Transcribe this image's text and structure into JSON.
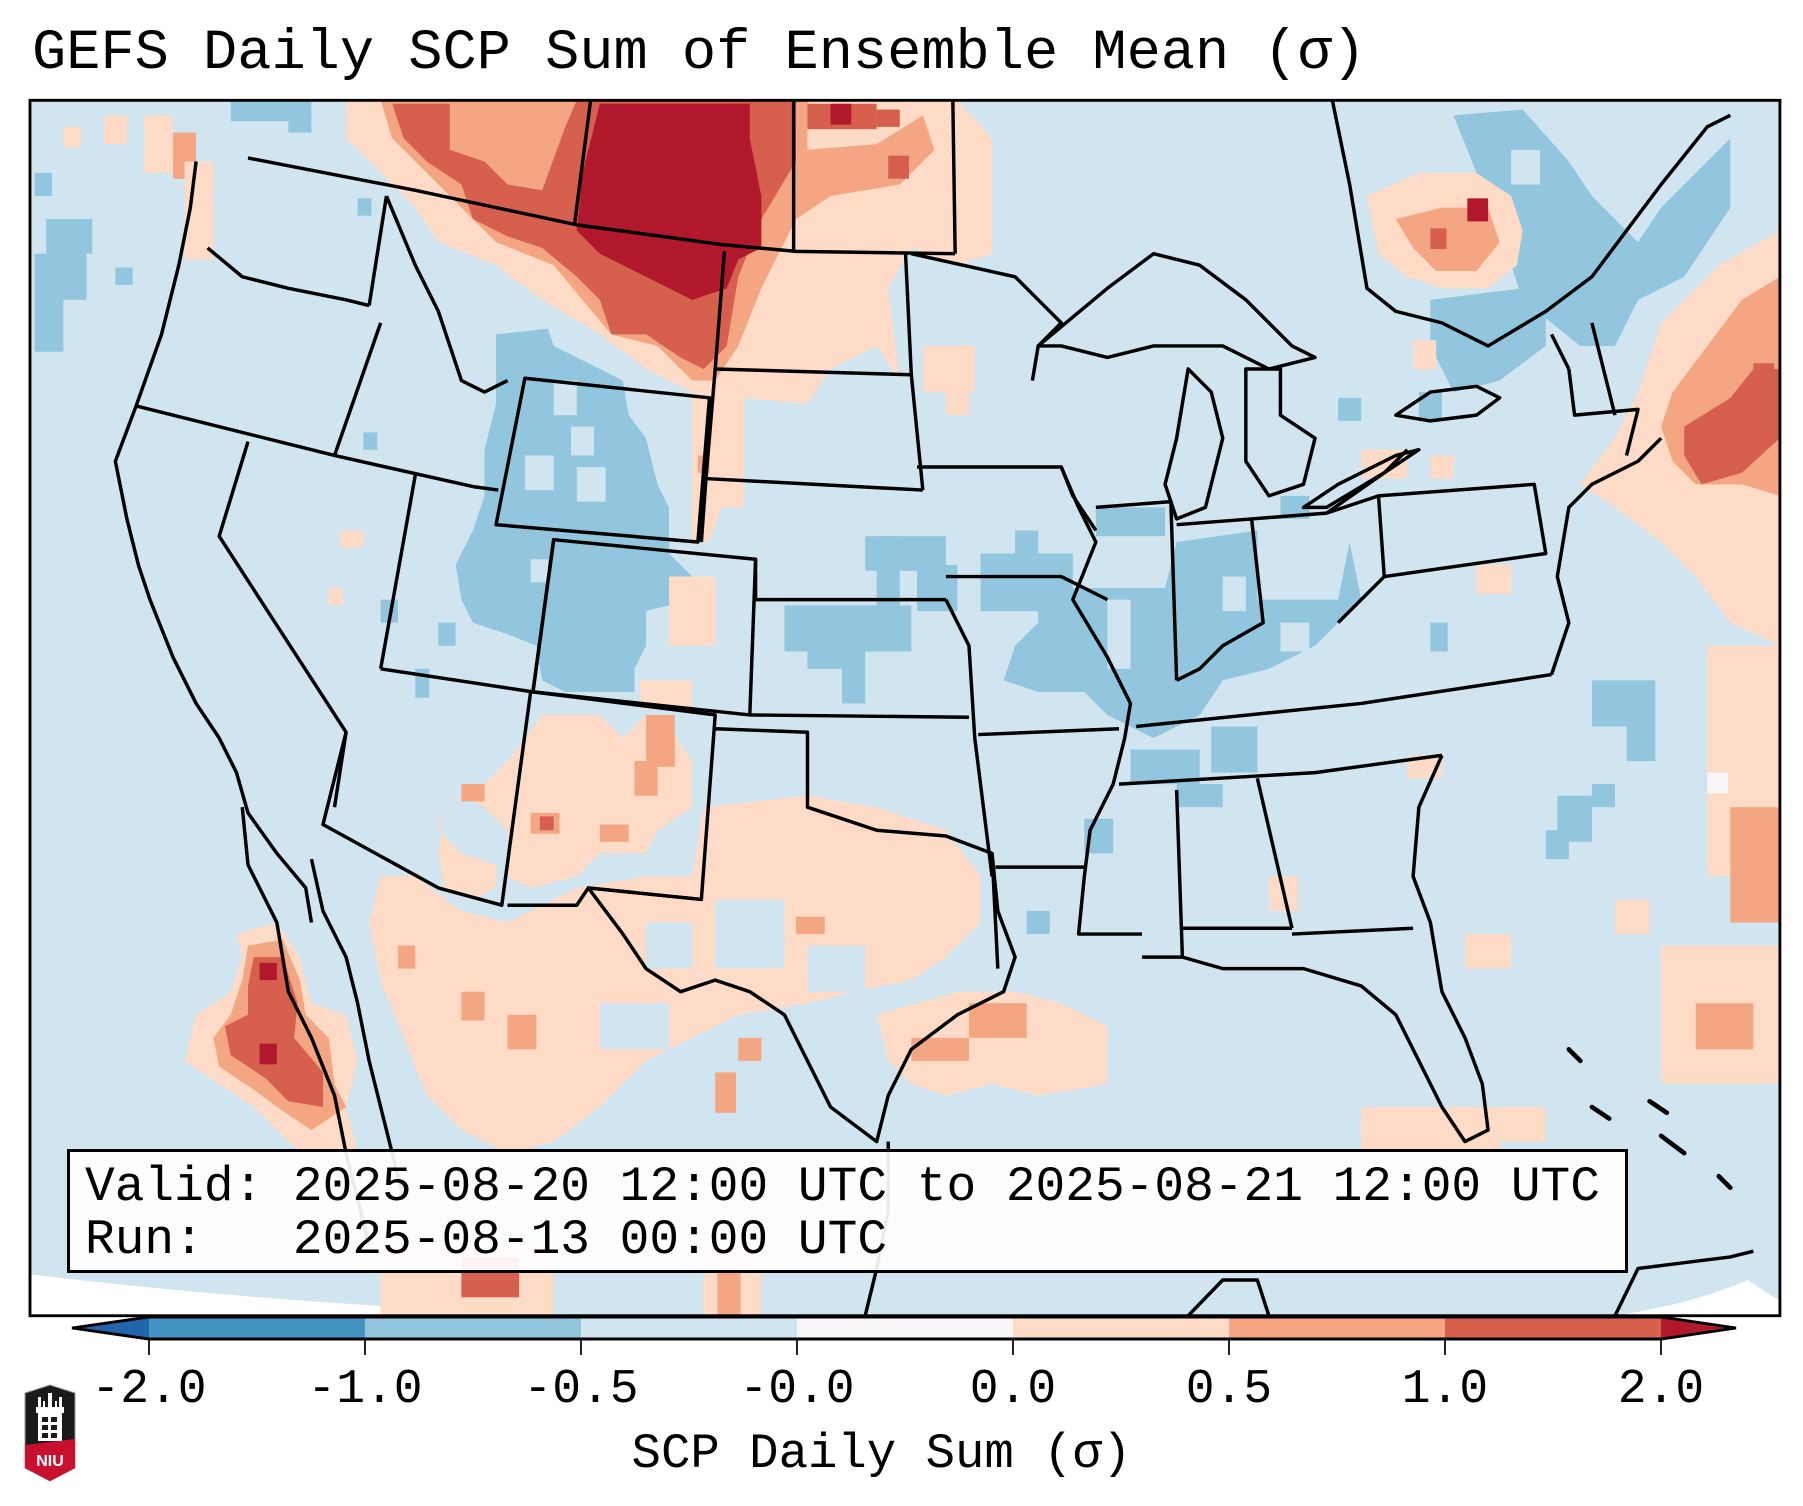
{
  "header": {
    "title": "GEFS Daily SCP Sum of Ensemble Mean (σ)"
  },
  "info_box": {
    "valid_label": "Valid:",
    "valid_text": "Valid: 2025-08-20 12:00 UTC to 2025-08-21 12:00 UTC",
    "run_text": "Run:   2025-08-13 00:00 UTC",
    "valid_start": "2025-08-20 12:00 UTC",
    "valid_end": "2025-08-21 12:00 UTC",
    "run": "2025-08-13 00:00 UTC"
  },
  "colorbar": {
    "label": "SCP Daily Sum (σ)",
    "ticks": [
      "-2.0",
      "-1.0",
      "-0.5",
      "-0.0",
      "0.0",
      "0.5",
      "1.0",
      "2.0"
    ],
    "colors": {
      "under": "#2166ac",
      "bins": [
        "#4393c3",
        "#92c5de",
        "#d1e5f0",
        "#f7f7f7",
        "#fddbc7",
        "#f4a582",
        "#d6604d"
      ],
      "over": "#b2182b"
    }
  },
  "map": {
    "region": "Contiguous United States",
    "background_color": "#d1e5f0",
    "boundary_color": "#000000"
  },
  "logo": {
    "text": "NIU",
    "icon": "niu-logo-icon"
  }
}
